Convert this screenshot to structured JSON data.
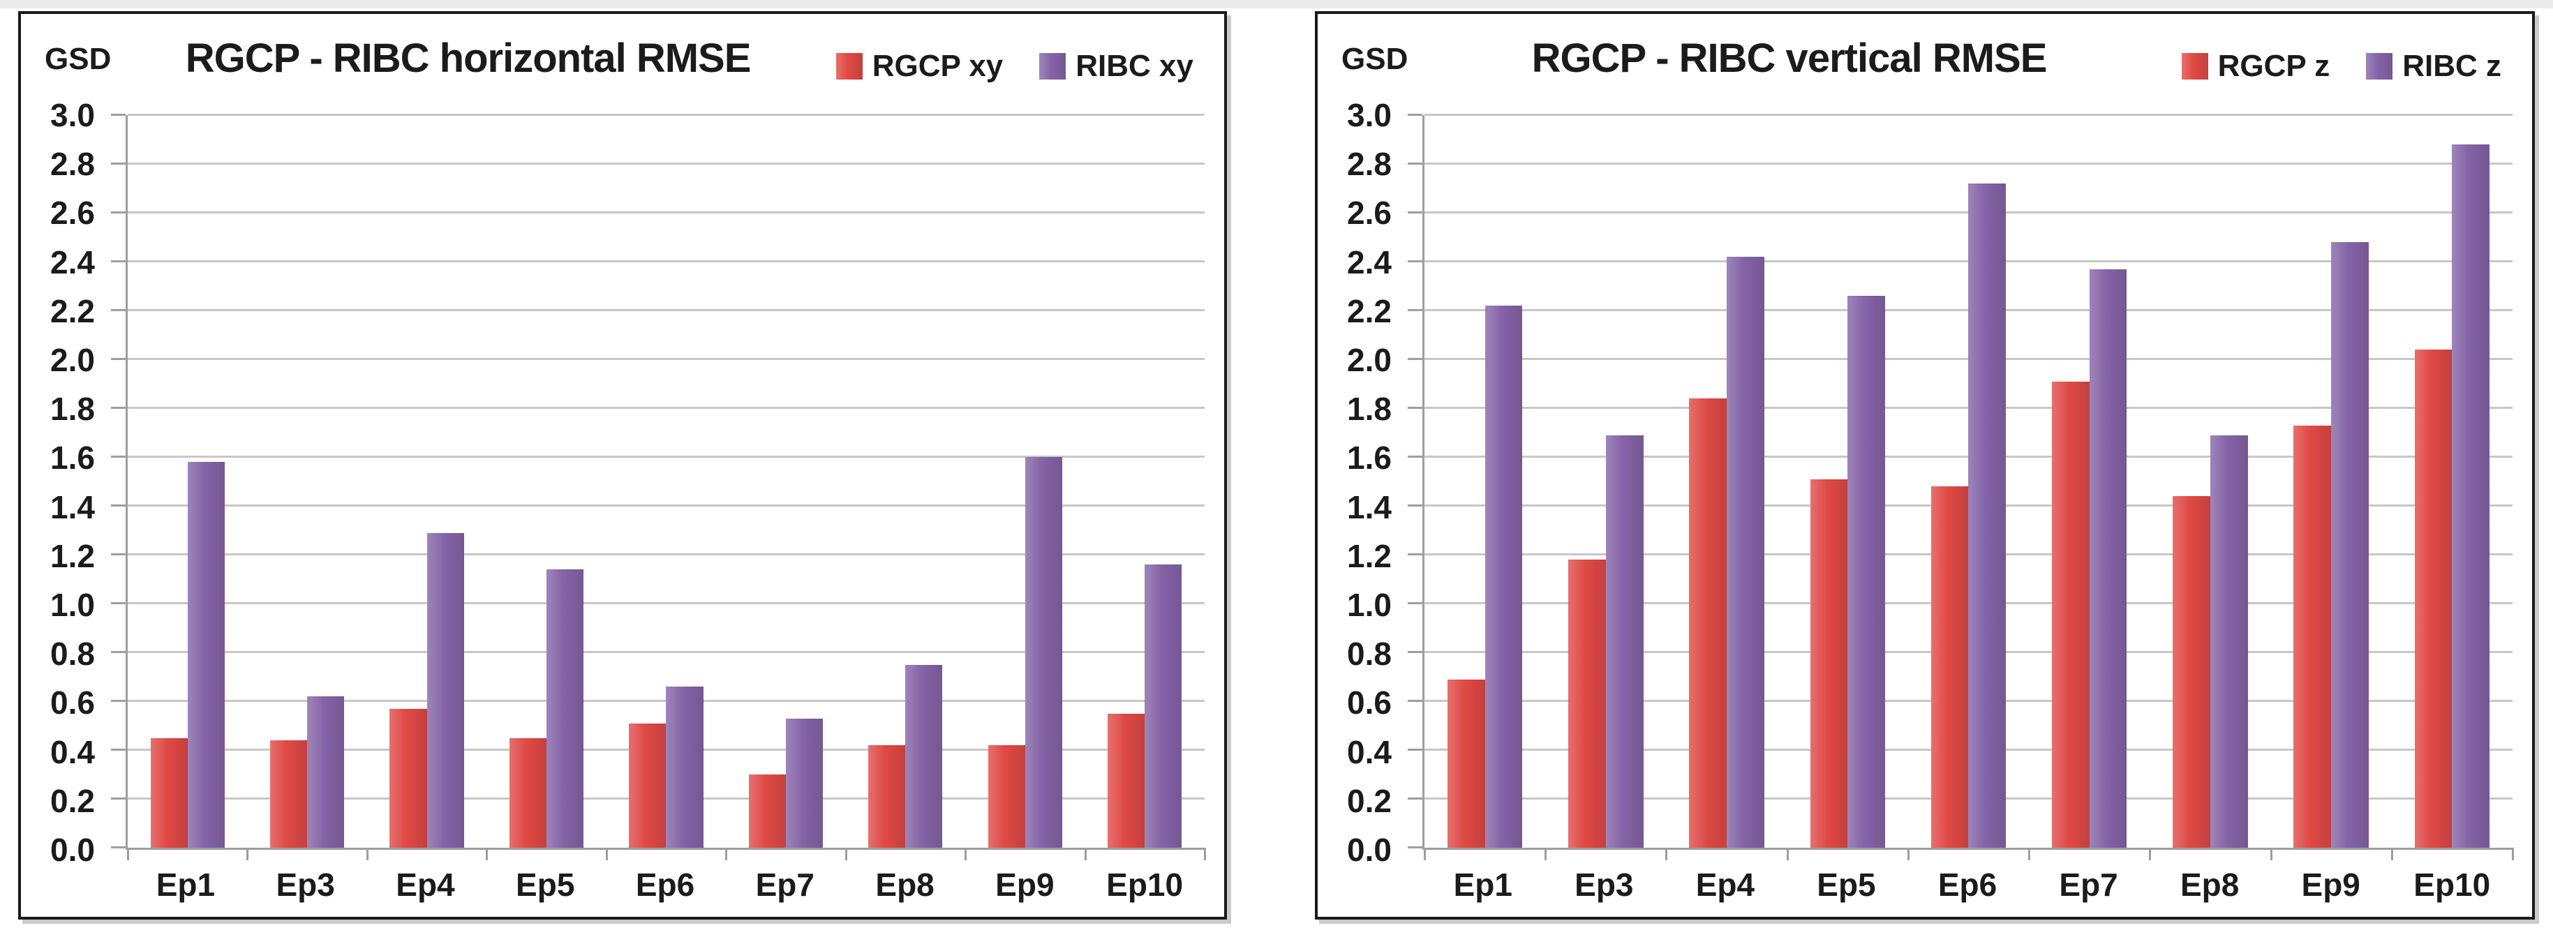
{
  "chart_data": [
    {
      "type": "bar",
      "title": "RGCP - RIBC horizontal RMSE",
      "unit_label": "GSD",
      "categories": [
        "Ep1",
        "Ep3",
        "Ep4",
        "Ep5",
        "Ep6",
        "Ep7",
        "Ep8",
        "Ep9",
        "Ep10"
      ],
      "series": [
        {
          "name": "RGCP xy",
          "color": "#DF4945",
          "values": [
            0.45,
            0.44,
            0.57,
            0.45,
            0.51,
            0.3,
            0.42,
            0.42,
            0.55
          ]
        },
        {
          "name": "RIBC xy",
          "color": "#8463A7",
          "values": [
            1.58,
            0.62,
            1.29,
            1.14,
            0.66,
            0.53,
            0.75,
            1.6,
            1.16
          ]
        }
      ],
      "ylim": [
        0.0,
        3.0
      ],
      "ytick_step": 0.2,
      "ytick_decimals": 1,
      "grid": true,
      "legend_position": "top-right",
      "xlabel": "",
      "ylabel": "GSD"
    },
    {
      "type": "bar",
      "title": "RGCP - RIBC vertical RMSE",
      "unit_label": "GSD",
      "categories": [
        "Ep1",
        "Ep3",
        "Ep4",
        "Ep5",
        "Ep6",
        "Ep7",
        "Ep8",
        "Ep9",
        "Ep10"
      ],
      "series": [
        {
          "name": "RGCP z",
          "color": "#DF4945",
          "values": [
            0.69,
            1.18,
            1.84,
            1.51,
            1.48,
            1.91,
            1.44,
            1.73,
            2.04
          ]
        },
        {
          "name": "RIBC z",
          "color": "#8463A7",
          "values": [
            2.22,
            1.69,
            2.42,
            2.26,
            2.72,
            2.37,
            1.69,
            2.48,
            2.88
          ]
        }
      ],
      "ylim": [
        0.0,
        3.0
      ],
      "ytick_step": 0.2,
      "ytick_decimals": 1,
      "grid": true,
      "legend_position": "top-right",
      "xlabel": "",
      "ylabel": "GSD"
    }
  ]
}
